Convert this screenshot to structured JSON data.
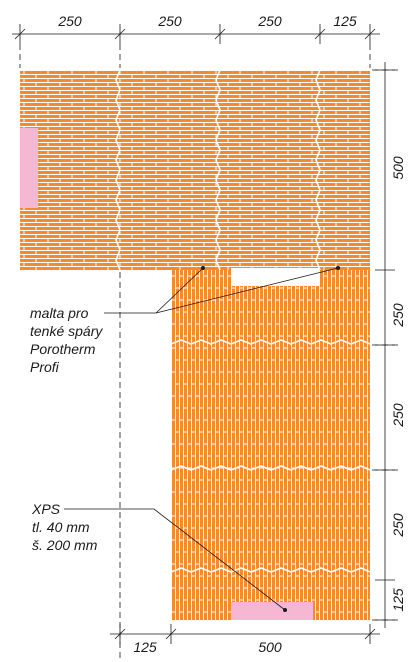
{
  "top_dimensions": [
    "250",
    "250",
    "250",
    "125"
  ],
  "right_dimensions": [
    "500",
    "250",
    "250",
    "250",
    "125"
  ],
  "bottom_dimensions": [
    "125",
    "500"
  ],
  "annotations": {
    "mortar": [
      "malta pro",
      "tenké spáry",
      "Porotherm",
      "Profi"
    ],
    "insulation": [
      "XPS",
      "tl. 40 mm",
      "š. 200 mm"
    ]
  },
  "colors": {
    "brick": "#F28A2E",
    "insulation": "#F6B7D2",
    "lines": "#1a1a1a"
  }
}
